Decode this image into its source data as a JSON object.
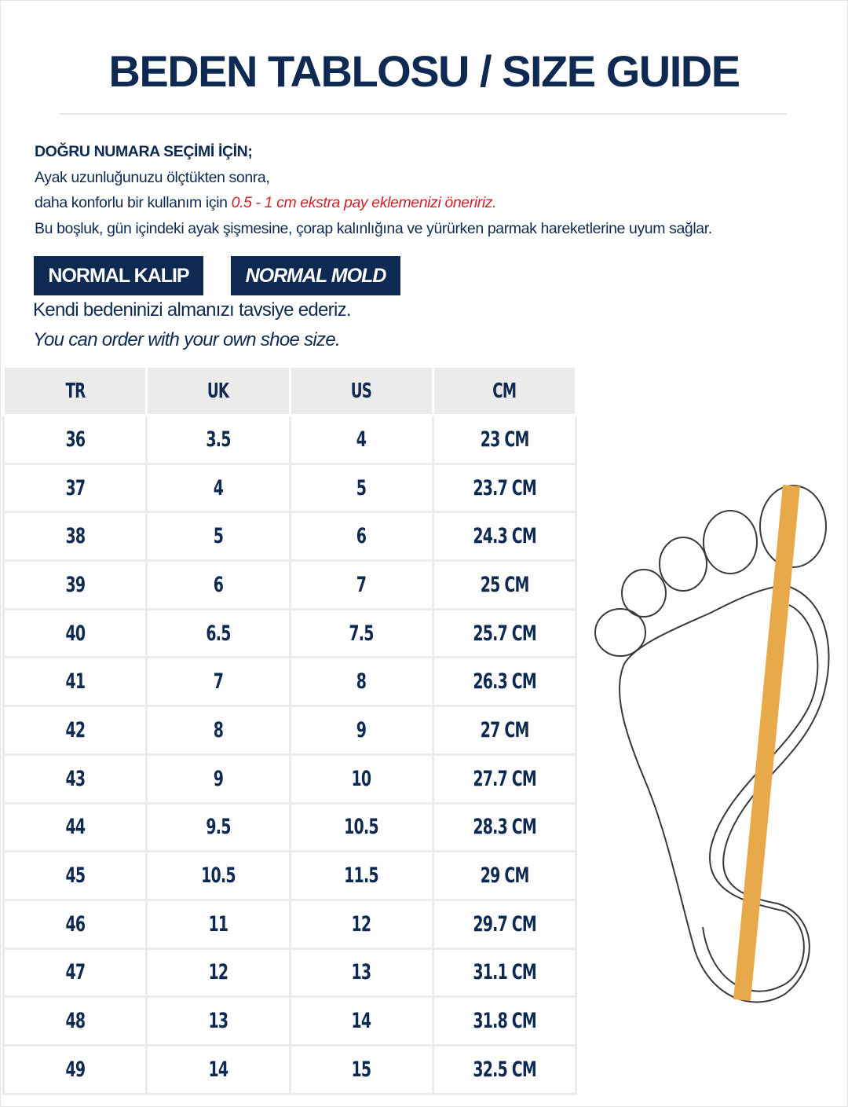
{
  "title": "BEDEN TABLOSU / SIZE GUIDE",
  "intro": {
    "heading": "DOĞRU NUMARA SEÇİMİ İÇİN;",
    "line1": "Ayak uzunluğunuzu ölçtükten sonra,",
    "line2_prefix": "daha konforlu bir kullanım için ",
    "line2_highlight": "0.5 - 1 cm ekstra pay eklemenizi öneririz.",
    "line3": "Bu boşluk, gün içindeki ayak şişmesine, çorap kalınlığına ve yürürken parmak hareketlerine uyum sağlar."
  },
  "badges": [
    "NORMAL KALIP",
    "NORMAL MOLD"
  ],
  "note_tr": "Kendi bedeninizi almanızı tavsiye ederiz.",
  "note_en": "You can order with your own shoe size.",
  "colors": {
    "navy": "#0f2a52",
    "red": "#d5202a",
    "ruler": "#e8a94a",
    "header_bg": "#ebebeb"
  },
  "table": {
    "headers": [
      "TR",
      "UK",
      "US",
      "CM"
    ],
    "rows": [
      [
        "36",
        "3.5",
        "4",
        "23 CM"
      ],
      [
        "37",
        "4",
        "5",
        "23.7 CM"
      ],
      [
        "38",
        "5",
        "6",
        "24.3 CM"
      ],
      [
        "39",
        "6",
        "7",
        "25 CM"
      ],
      [
        "40",
        "6.5",
        "7.5",
        "25.7 CM"
      ],
      [
        "41",
        "7",
        "8",
        "26.3 CM"
      ],
      [
        "42",
        "8",
        "9",
        "27 CM"
      ],
      [
        "43",
        "9",
        "10",
        "27.7 CM"
      ],
      [
        "44",
        "9.5",
        "10.5",
        "28.3 CM"
      ],
      [
        "45",
        "10.5",
        "11.5",
        "29 CM"
      ],
      [
        "46",
        "11",
        "12",
        "29.7 CM"
      ],
      [
        "47",
        "12",
        "13",
        "31.1 CM"
      ],
      [
        "48",
        "13",
        "14",
        "31.8 CM"
      ],
      [
        "49",
        "14",
        "15",
        "32.5 CM"
      ]
    ]
  },
  "illustration": "foot-length-measure-icon"
}
